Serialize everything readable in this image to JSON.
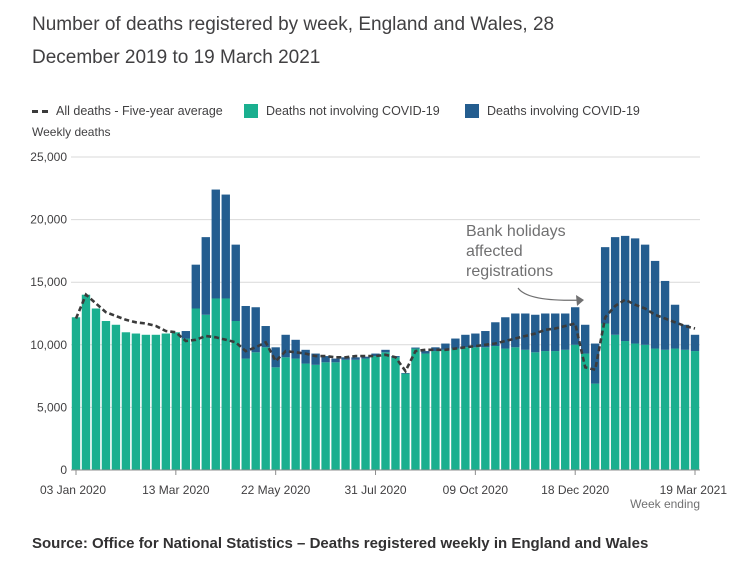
{
  "chart_data": {
    "type": "bar",
    "title": "Number of deaths registered by week, England and Wales, 28 December 2019 to 19 March 2021",
    "ylabel": "Weekly deaths",
    "xlabel": "Week ending",
    "ylim": [
      0,
      25000
    ],
    "yticks": [
      0,
      5000,
      10000,
      15000,
      20000,
      25000
    ],
    "ytick_labels": [
      "0",
      "5,000",
      "10,000",
      "15,000",
      "20,000",
      "25,000"
    ],
    "xtick_labels": [
      {
        "index": 0,
        "label": "03 Jan 2020"
      },
      {
        "index": 10,
        "label": "13 Mar 2020"
      },
      {
        "index": 20,
        "label": "22 May 2020"
      },
      {
        "index": 30,
        "label": "31 Jul 2020"
      },
      {
        "index": 40,
        "label": "09 Oct 2020"
      },
      {
        "index": 50,
        "label": "18 Dec 2020"
      },
      {
        "index": 62,
        "label": "19 Mar 2021"
      }
    ],
    "legend": [
      {
        "name": "All deaths - Five-year average",
        "color": "#3b3b3b",
        "kind": "dashed-line"
      },
      {
        "name": "Deaths not involving COVID-19",
        "color": "#1aaf8f",
        "kind": "bar"
      },
      {
        "name": "Deaths involving COVID-19",
        "color": "#245d8f",
        "kind": "bar"
      }
    ],
    "series": [
      {
        "name": "Deaths not involving COVID-19",
        "values": [
          12200,
          14000,
          12900,
          11900,
          11600,
          11000,
          10900,
          10800,
          10800,
          10900,
          11000,
          10500,
          12900,
          12400,
          13700,
          13700,
          11900,
          8900,
          9400,
          9800,
          8200,
          9000,
          8900,
          8500,
          8400,
          8600,
          8600,
          8800,
          8800,
          8900,
          9100,
          9400,
          9000,
          7700,
          9700,
          9300,
          9500,
          9600,
          9700,
          9800,
          9800,
          9800,
          9900,
          9700,
          9800,
          9600,
          9400,
          9500,
          9500,
          9600,
          10000,
          9300,
          6900,
          11700,
          10800,
          10300,
          10100,
          10000,
          9700,
          9600,
          9700,
          9600,
          9500
        ]
      },
      {
        "name": "Deaths involving COVID-19",
        "values": [
          0,
          0,
          0,
          0,
          0,
          0,
          0,
          0,
          0,
          0,
          0,
          600,
          3500,
          6200,
          8700,
          8300,
          6100,
          4200,
          3600,
          1700,
          1600,
          1800,
          1500,
          1100,
          900,
          500,
          300,
          200,
          200,
          150,
          200,
          200,
          100,
          50,
          80,
          200,
          300,
          500,
          800,
          1000,
          1100,
          1300,
          1900,
          2500,
          2700,
          2900,
          3000,
          3000,
          3000,
          2900,
          3000,
          2300,
          3200,
          6100,
          7800,
          8400,
          8400,
          8000,
          7000,
          5500,
          3500,
          2000,
          1300
        ]
      },
      {
        "name": "All deaths - Five-year average",
        "values": [
          12100,
          14000,
          13300,
          12600,
          12300,
          12000,
          11800,
          11700,
          11500,
          11100,
          11000,
          10300,
          10400,
          10700,
          10600,
          10400,
          10200,
          9500,
          9800,
          10200,
          8700,
          9500,
          9400,
          9300,
          9100,
          9100,
          9000,
          9000,
          9100,
          9100,
          9100,
          9200,
          9000,
          7900,
          9500,
          9600,
          9600,
          9600,
          9700,
          9800,
          9900,
          10000,
          10100,
          10300,
          10500,
          10700,
          10900,
          11200,
          11300,
          11500,
          11700,
          8200,
          8000,
          12200,
          13100,
          13600,
          13200,
          12900,
          12400,
          12100,
          11800,
          11500,
          11300
        ]
      }
    ],
    "annotation": {
      "lines": [
        "Bank holidays",
        "affected",
        "registrations"
      ]
    },
    "colors": {
      "covid": "#245d8f",
      "non_covid": "#1aaf8f",
      "average": "#3b3b3b",
      "grid": "#d9d9d9",
      "axis": "#8c8c8c"
    }
  },
  "source": "Source: Office for National Statistics – Deaths registered weekly in England and Wales"
}
